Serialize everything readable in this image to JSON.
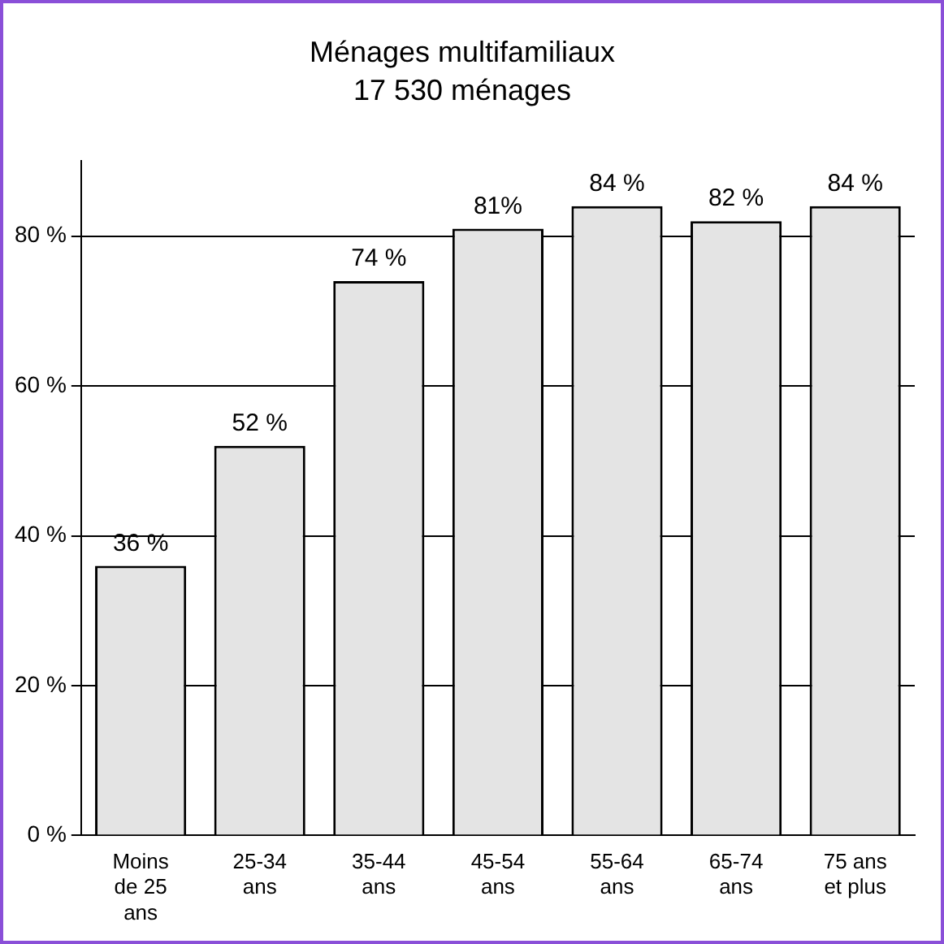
{
  "chart_data": {
    "type": "bar",
    "title": "Ménages multifamiliaux",
    "subtitle": "17 530 ménages",
    "categories": [
      "Moins de 25 ans",
      "25-34 ans",
      "35-44 ans",
      "45-54 ans",
      "55-64 ans",
      "65-74 ans",
      "75 ans et plus"
    ],
    "values": [
      36,
      52,
      74,
      81,
      84,
      82,
      84
    ],
    "value_labels": [
      "36 %",
      "52 %",
      "74 %",
      "81%",
      "84 %",
      "82 %",
      "84 %"
    ],
    "color": "#e4e4e4",
    "ylim": [
      0,
      90
    ],
    "yticks": [
      {
        "value": 0,
        "label": "0 %"
      },
      {
        "value": 20,
        "label": "20 %"
      },
      {
        "value": 40,
        "label": "40 %"
      },
      {
        "value": 60,
        "label": "60 %"
      },
      {
        "value": 80,
        "label": "80 %"
      }
    ],
    "grid": "y",
    "legend": false
  }
}
